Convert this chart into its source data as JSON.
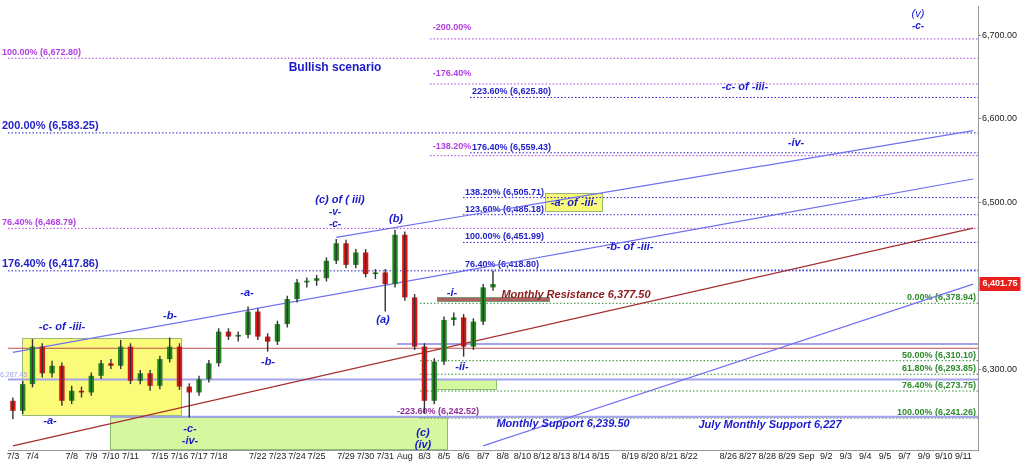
{
  "chart_data": {
    "type": "candlestick",
    "categories": [
      "7/3",
      null,
      "7/4",
      null,
      null,
      null,
      "7/8",
      null,
      "7/9",
      null,
      "7/10",
      null,
      "7/11",
      null,
      null,
      "7/15",
      null,
      "7/16",
      null,
      "7/17",
      null,
      "7/18",
      null,
      null,
      null,
      "7/22",
      null,
      "7/23",
      null,
      "7/24",
      null,
      "7/25",
      null,
      null,
      "7/29",
      null,
      "7/30",
      null,
      "7/31",
      null,
      "Aug",
      null,
      "8/3",
      null,
      "8/5",
      null,
      "8/6",
      null,
      "8/7",
      null,
      "8/8",
      null,
      "8/10",
      null,
      "8/12",
      null,
      "8/13",
      null,
      "8/14",
      null,
      "8/15",
      null,
      null,
      "8/19",
      null,
      "8/20",
      null,
      "8/21",
      null,
      "8/22",
      null,
      null,
      null,
      "8/26",
      null,
      "8/27",
      null,
      "8/28",
      null,
      "8/29",
      null,
      "Sep",
      null,
      "9/2",
      null,
      "9/3",
      null,
      "9/4",
      null,
      "9/5",
      null,
      "9/7",
      null,
      "9/9",
      null,
      "9/10",
      null,
      "9/11",
      null
    ],
    "ohlc": [
      [
        6262,
        6266,
        6240,
        6250
      ],
      [
        6250,
        6286,
        6246,
        6282
      ],
      [
        6282,
        6336,
        6278,
        6327
      ],
      [
        6327,
        6331,
        6290,
        6295
      ],
      [
        6295,
        6310,
        6290,
        6304
      ],
      [
        6304,
        6308,
        6256,
        6262
      ],
      [
        6262,
        6280,
        6258,
        6274
      ],
      [
        6274,
        6279,
        6266,
        6272
      ],
      [
        6272,
        6296,
        6268,
        6292
      ],
      [
        6292,
        6311,
        6288,
        6307
      ],
      [
        6307,
        6312,
        6300,
        6304
      ],
      [
        6304,
        6335,
        6300,
        6327
      ],
      [
        6327,
        6331,
        6282,
        6286
      ],
      [
        6286,
        6299,
        6282,
        6295
      ],
      [
        6295,
        6299,
        6274,
        6280
      ],
      [
        6280,
        6316,
        6276,
        6312
      ],
      [
        6312,
        6338,
        6308,
        6327
      ],
      [
        6327,
        6331,
        6275,
        6279
      ],
      [
        6279,
        6283,
        6242,
        6272
      ],
      [
        6272,
        6292,
        6268,
        6288
      ],
      [
        6288,
        6311,
        6284,
        6307
      ],
      [
        6307,
        6349,
        6303,
        6345
      ],
      [
        6345,
        6349,
        6335,
        6339
      ],
      [
        6339,
        6345,
        6333,
        6341
      ],
      [
        6341,
        6375,
        6337,
        6369
      ],
      [
        6369,
        6373,
        6335,
        6339
      ],
      [
        6339,
        6343,
        6321,
        6333
      ],
      [
        6333,
        6358,
        6329,
        6354
      ],
      [
        6354,
        6388,
        6350,
        6384
      ],
      [
        6384,
        6408,
        6380,
        6404
      ],
      [
        6404,
        6410,
        6398,
        6406
      ],
      [
        6406,
        6413,
        6400,
        6409
      ],
      [
        6409,
        6434,
        6405,
        6430
      ],
      [
        6430,
        6456,
        6426,
        6451
      ],
      [
        6451,
        6455,
        6421,
        6425
      ],
      [
        6425,
        6444,
        6421,
        6440
      ],
      [
        6440,
        6444,
        6410,
        6414
      ],
      [
        6414,
        6420,
        6408,
        6416
      ],
      [
        6416,
        6420,
        6369,
        6402
      ],
      [
        6402,
        6467,
        6398,
        6461
      ],
      [
        6461,
        6465,
        6382,
        6386
      ],
      [
        6386,
        6390,
        6323,
        6327
      ],
      [
        6327,
        6331,
        6247,
        6262
      ],
      [
        6262,
        6313,
        6258,
        6309
      ],
      [
        6309,
        6363,
        6305,
        6359
      ],
      [
        6359,
        6368,
        6352,
        6362
      ],
      [
        6362,
        6366,
        6315,
        6327
      ],
      [
        6327,
        6361,
        6323,
        6357
      ],
      [
        6357,
        6402,
        6353,
        6398
      ],
      [
        6398,
        6418,
        6394,
        6402
      ],
      null,
      null,
      null,
      null,
      null,
      null,
      null,
      null,
      null,
      null,
      null,
      null,
      null,
      null,
      null,
      null,
      null,
      null,
      null,
      null,
      null,
      null,
      null,
      null,
      null,
      null,
      null,
      null,
      null,
      null,
      null,
      null,
      null,
      null,
      null,
      null,
      null,
      null,
      null,
      null,
      null,
      null,
      null,
      null,
      null,
      null,
      null,
      null,
      null
    ],
    "colors": [
      "#e01515",
      "#1e8c1e",
      "#1e8c1e",
      "#e01515",
      "#1e8c1e",
      "#e01515",
      "#1e8c1e",
      "#e01515",
      "#1e8c1e",
      "#1e8c1e",
      "#e01515",
      "#1e8c1e",
      "#e01515",
      "#1e8c1e",
      "#e01515",
      "#1e8c1e",
      "#1e8c1e",
      "#e01515",
      "#e01515",
      "#1e8c1e",
      "#1e8c1e",
      "#1e8c1e",
      "#e01515",
      "#1e8c1e",
      "#1e8c1e",
      "#e01515",
      "#e01515",
      "#1e8c1e",
      "#1e8c1e",
      "#1e8c1e",
      "#1e8c1e",
      "#1e8c1e",
      "#1e8c1e",
      "#1e8c1e",
      "#e01515",
      "#1e8c1e",
      "#e01515",
      "#1e8c1e",
      "#e01515",
      "#1e8c1e",
      "#e01515",
      "#e01515",
      "#e01515",
      "#1e8c1e",
      "#1e8c1e",
      "#1e8c1e",
      "#e01515",
      "#1e8c1e",
      "#1e8c1e",
      "#1e8c1e",
      null,
      null,
      null,
      null,
      null,
      null,
      null,
      null,
      null,
      null,
      null,
      null,
      null,
      null,
      null,
      null,
      null,
      null,
      null,
      null,
      null,
      null,
      null,
      null,
      null,
      null,
      null,
      null,
      null,
      null,
      null,
      null,
      null,
      null,
      null,
      null,
      null,
      null,
      null,
      null,
      null,
      null,
      null,
      null,
      null,
      null,
      null,
      null,
      null
    ],
    "series": [
      {
        "type": "line",
        "color": "#a52a2a",
        "values": [
          6208,
          null,
          null,
          null,
          null,
          null,
          null,
          null,
          null,
          null,
          null,
          null,
          null,
          null,
          null,
          null,
          null,
          null,
          null,
          null,
          null,
          null,
          null,
          null,
          null,
          null,
          null,
          null,
          null,
          null,
          null,
          null,
          null,
          null,
          null,
          null,
          null,
          null,
          null,
          null,
          null,
          null,
          null,
          null,
          null,
          null,
          null,
          null,
          null,
          null,
          null,
          null,
          null,
          null,
          null,
          null,
          null,
          null,
          null,
          null,
          null,
          null,
          null,
          null,
          null,
          null,
          null,
          null,
          null,
          null,
          null,
          null,
          null,
          null,
          null,
          null,
          null,
          null,
          null,
          null,
          null,
          null,
          null,
          null,
          null,
          null,
          null,
          null,
          null,
          null,
          null,
          null,
          null,
          null,
          null,
          null,
          null,
          null,
          6469
        ]
      },
      {
        "type": "line",
        "color": "#6f6ff0",
        "values": [
          6320,
          null,
          null,
          null,
          null,
          null,
          null,
          null,
          null,
          null,
          null,
          null,
          null,
          null,
          null,
          null,
          null,
          null,
          null,
          null,
          null,
          null,
          null,
          null,
          null,
          null,
          null,
          null,
          null,
          null,
          null,
          null,
          null,
          null,
          null,
          null,
          null,
          null,
          null,
          null,
          null,
          null,
          null,
          null,
          null,
          null,
          null,
          null,
          null,
          null,
          null,
          null,
          null,
          null,
          null,
          null,
          null,
          null,
          null,
          null,
          null,
          null,
          null,
          null,
          null,
          null,
          null,
          null,
          null,
          null,
          null,
          null,
          null,
          null,
          null,
          null,
          null,
          null,
          null,
          null,
          null,
          null,
          null,
          null,
          null,
          null,
          null,
          null,
          null,
          null,
          null,
          null,
          null,
          null,
          null,
          null,
          null,
          null,
          6528
        ]
      },
      {
        "type": "line",
        "color": "#6f6ff0",
        "values": [
          null,
          null,
          null,
          null,
          null,
          null,
          null,
          null,
          null,
          null,
          null,
          null,
          null,
          null,
          null,
          null,
          null,
          null,
          null,
          null,
          null,
          null,
          null,
          null,
          null,
          null,
          null,
          null,
          null,
          null,
          null,
          null,
          null,
          6458,
          null,
          null,
          null,
          null,
          null,
          null,
          null,
          null,
          null,
          null,
          null,
          null,
          null,
          null,
          null,
          null,
          null,
          null,
          null,
          null,
          null,
          null,
          null,
          null,
          null,
          null,
          null,
          null,
          null,
          null,
          null,
          null,
          null,
          null,
          null,
          null,
          null,
          null,
          null,
          null,
          null,
          null,
          null,
          null,
          null,
          null,
          null,
          null,
          null,
          null,
          null,
          null,
          null,
          null,
          null,
          null,
          null,
          null,
          null,
          null,
          null,
          null,
          null,
          null,
          6586
        ]
      },
      {
        "type": "line",
        "color": "#6f6ff0",
        "values": [
          null,
          null,
          null,
          null,
          null,
          null,
          null,
          null,
          null,
          null,
          null,
          null,
          null,
          null,
          null,
          null,
          null,
          null,
          null,
          null,
          null,
          null,
          null,
          null,
          null,
          null,
          null,
          null,
          null,
          null,
          null,
          null,
          null,
          null,
          null,
          null,
          null,
          null,
          null,
          null,
          null,
          null,
          null,
          null,
          null,
          null,
          null,
          null,
          6208,
          null,
          null,
          null,
          null,
          null,
          null,
          null,
          null,
          null,
          null,
          null,
          null,
          null,
          null,
          null,
          null,
          null,
          null,
          null,
          null,
          null,
          null,
          null,
          null,
          null,
          null,
          null,
          null,
          null,
          null,
          null,
          null,
          null,
          null,
          null,
          null,
          null,
          null,
          null,
          null,
          null,
          null,
          null,
          null,
          null,
          null,
          null,
          null,
          null,
          6402
        ]
      }
    ],
    "ylim": [
      6203,
      6735
    ],
    "yticks": [
      {
        "value": 6300,
        "label": "6,300.00"
      },
      {
        "value": 6500,
        "label": "6,500.00"
      },
      {
        "value": 6600,
        "label": "6,600.00"
      },
      {
        "value": 6700,
        "label": "6,700.00"
      }
    ],
    "ref_lines": [
      {
        "axis": "y",
        "value": 6696,
        "color": "#b03ee0",
        "line_style": "dotted"
      },
      {
        "axis": "y",
        "value": 6672.8,
        "label": "100.00% (6,672.80)",
        "color": "#b03ee0",
        "line_style": "dotted"
      },
      {
        "axis": "y",
        "value": 6642,
        "color": "#b03ee0",
        "line_style": "dotted"
      },
      {
        "axis": "y",
        "value": 6625.8,
        "label": "223.60% (6,625.80)",
        "color": "#2323c8",
        "line_style": "dotted"
      },
      {
        "axis": "y",
        "value": 6583.25,
        "label": "200.00% (6,583.25)",
        "color": "#2323c8",
        "line_style": "dotted"
      },
      {
        "axis": "y",
        "value": 6556,
        "color": "#b03ee0",
        "line_style": "dotted"
      },
      {
        "axis": "y",
        "value": 6559.43,
        "label": "176.40% (6,559.43)",
        "color": "#2323c8",
        "line_style": "dotted"
      },
      {
        "axis": "y",
        "value": 6505.71,
        "label": "138.20% (6,505.71)",
        "color": "#2323c8",
        "line_style": "dotted"
      },
      {
        "axis": "y",
        "value": 6485.18,
        "label": "123.60% (6,485.18)",
        "color": "#2323c8",
        "line_style": "dotted"
      },
      {
        "axis": "y",
        "value": 6468.79,
        "label": "76.40% (6,468.79)",
        "color": "#b03ee0",
        "line_style": "dotted"
      },
      {
        "axis": "y",
        "value": 6451.99,
        "label": "100.00% (6,451.99)",
        "color": "#2323c8",
        "line_style": "dotted"
      },
      {
        "axis": "y",
        "value": 6417.86,
        "label": "176.40% (6,417.86)",
        "color": "#2323c8",
        "line_style": "dotted"
      },
      {
        "axis": "y",
        "value": 6418.8,
        "label": "76.40% (6,418.80)",
        "color": "#2323c8",
        "line_style": "dotted"
      },
      {
        "axis": "y",
        "value": 6378.94,
        "label": "0.00% (6,378.94)",
        "color": "#2e8b2e",
        "line_style": "dotted"
      },
      {
        "axis": "y",
        "value": 6310.1,
        "label": "50.00% (6,310.10)",
        "color": "#2e8b2e",
        "line_style": "dotted"
      },
      {
        "axis": "y",
        "value": 6293.85,
        "label": "61.80% (6,293.85)",
        "color": "#2e8b2e",
        "line_style": "dotted"
      },
      {
        "axis": "y",
        "value": 6273.75,
        "label": "76.40% (6,273.75)",
        "color": "#2e8b2e",
        "line_style": "dotted"
      },
      {
        "axis": "y",
        "value": 6241.26,
        "label": "100.00% (6,241.26)",
        "color": "#2e8b2e",
        "line_style": "dotted"
      },
      {
        "axis": "y",
        "value": 6242.52,
        "label": "-223.60% (6,242.52)",
        "color": "#8e2a9a",
        "line_style": "dotted"
      },
      {
        "axis": "y",
        "value": 6287.45,
        "label": "6,287.45",
        "color": "#a4a4ee",
        "line_style": "solid"
      },
      {
        "axis": "y",
        "value": 6330,
        "color": "#a4a4ee",
        "line_style": "solid"
      },
      {
        "axis": "y",
        "value": 6325,
        "color": "#c05050",
        "line_style": "solid"
      },
      {
        "axis": "y",
        "value": 6243,
        "color": "#a4a4ee",
        "line_style": "solid"
      }
    ],
    "annotations": [
      "Bullish scenario",
      "-c- of -iii-",
      "-a-",
      "-b-",
      "-c-",
      "-iv-",
      "-a-",
      "-b-",
      "(c) of ( iii)",
      "-v-",
      "-c-",
      "(b)",
      "(a)",
      "(c)",
      "(iv)",
      "-i-",
      "-ii-",
      "-a- of -iii-",
      "-b- of -iii-",
      "-iv-",
      "-c- of -iii-",
      "(v)",
      "-c-",
      "Monthly Resistance 6,377.50",
      "Monthly Support 6,239.50",
      "July Monthly Support 6,227",
      "6,401.75",
      "-200.00%",
      "-176.40%",
      "-138.20%"
    ]
  }
}
